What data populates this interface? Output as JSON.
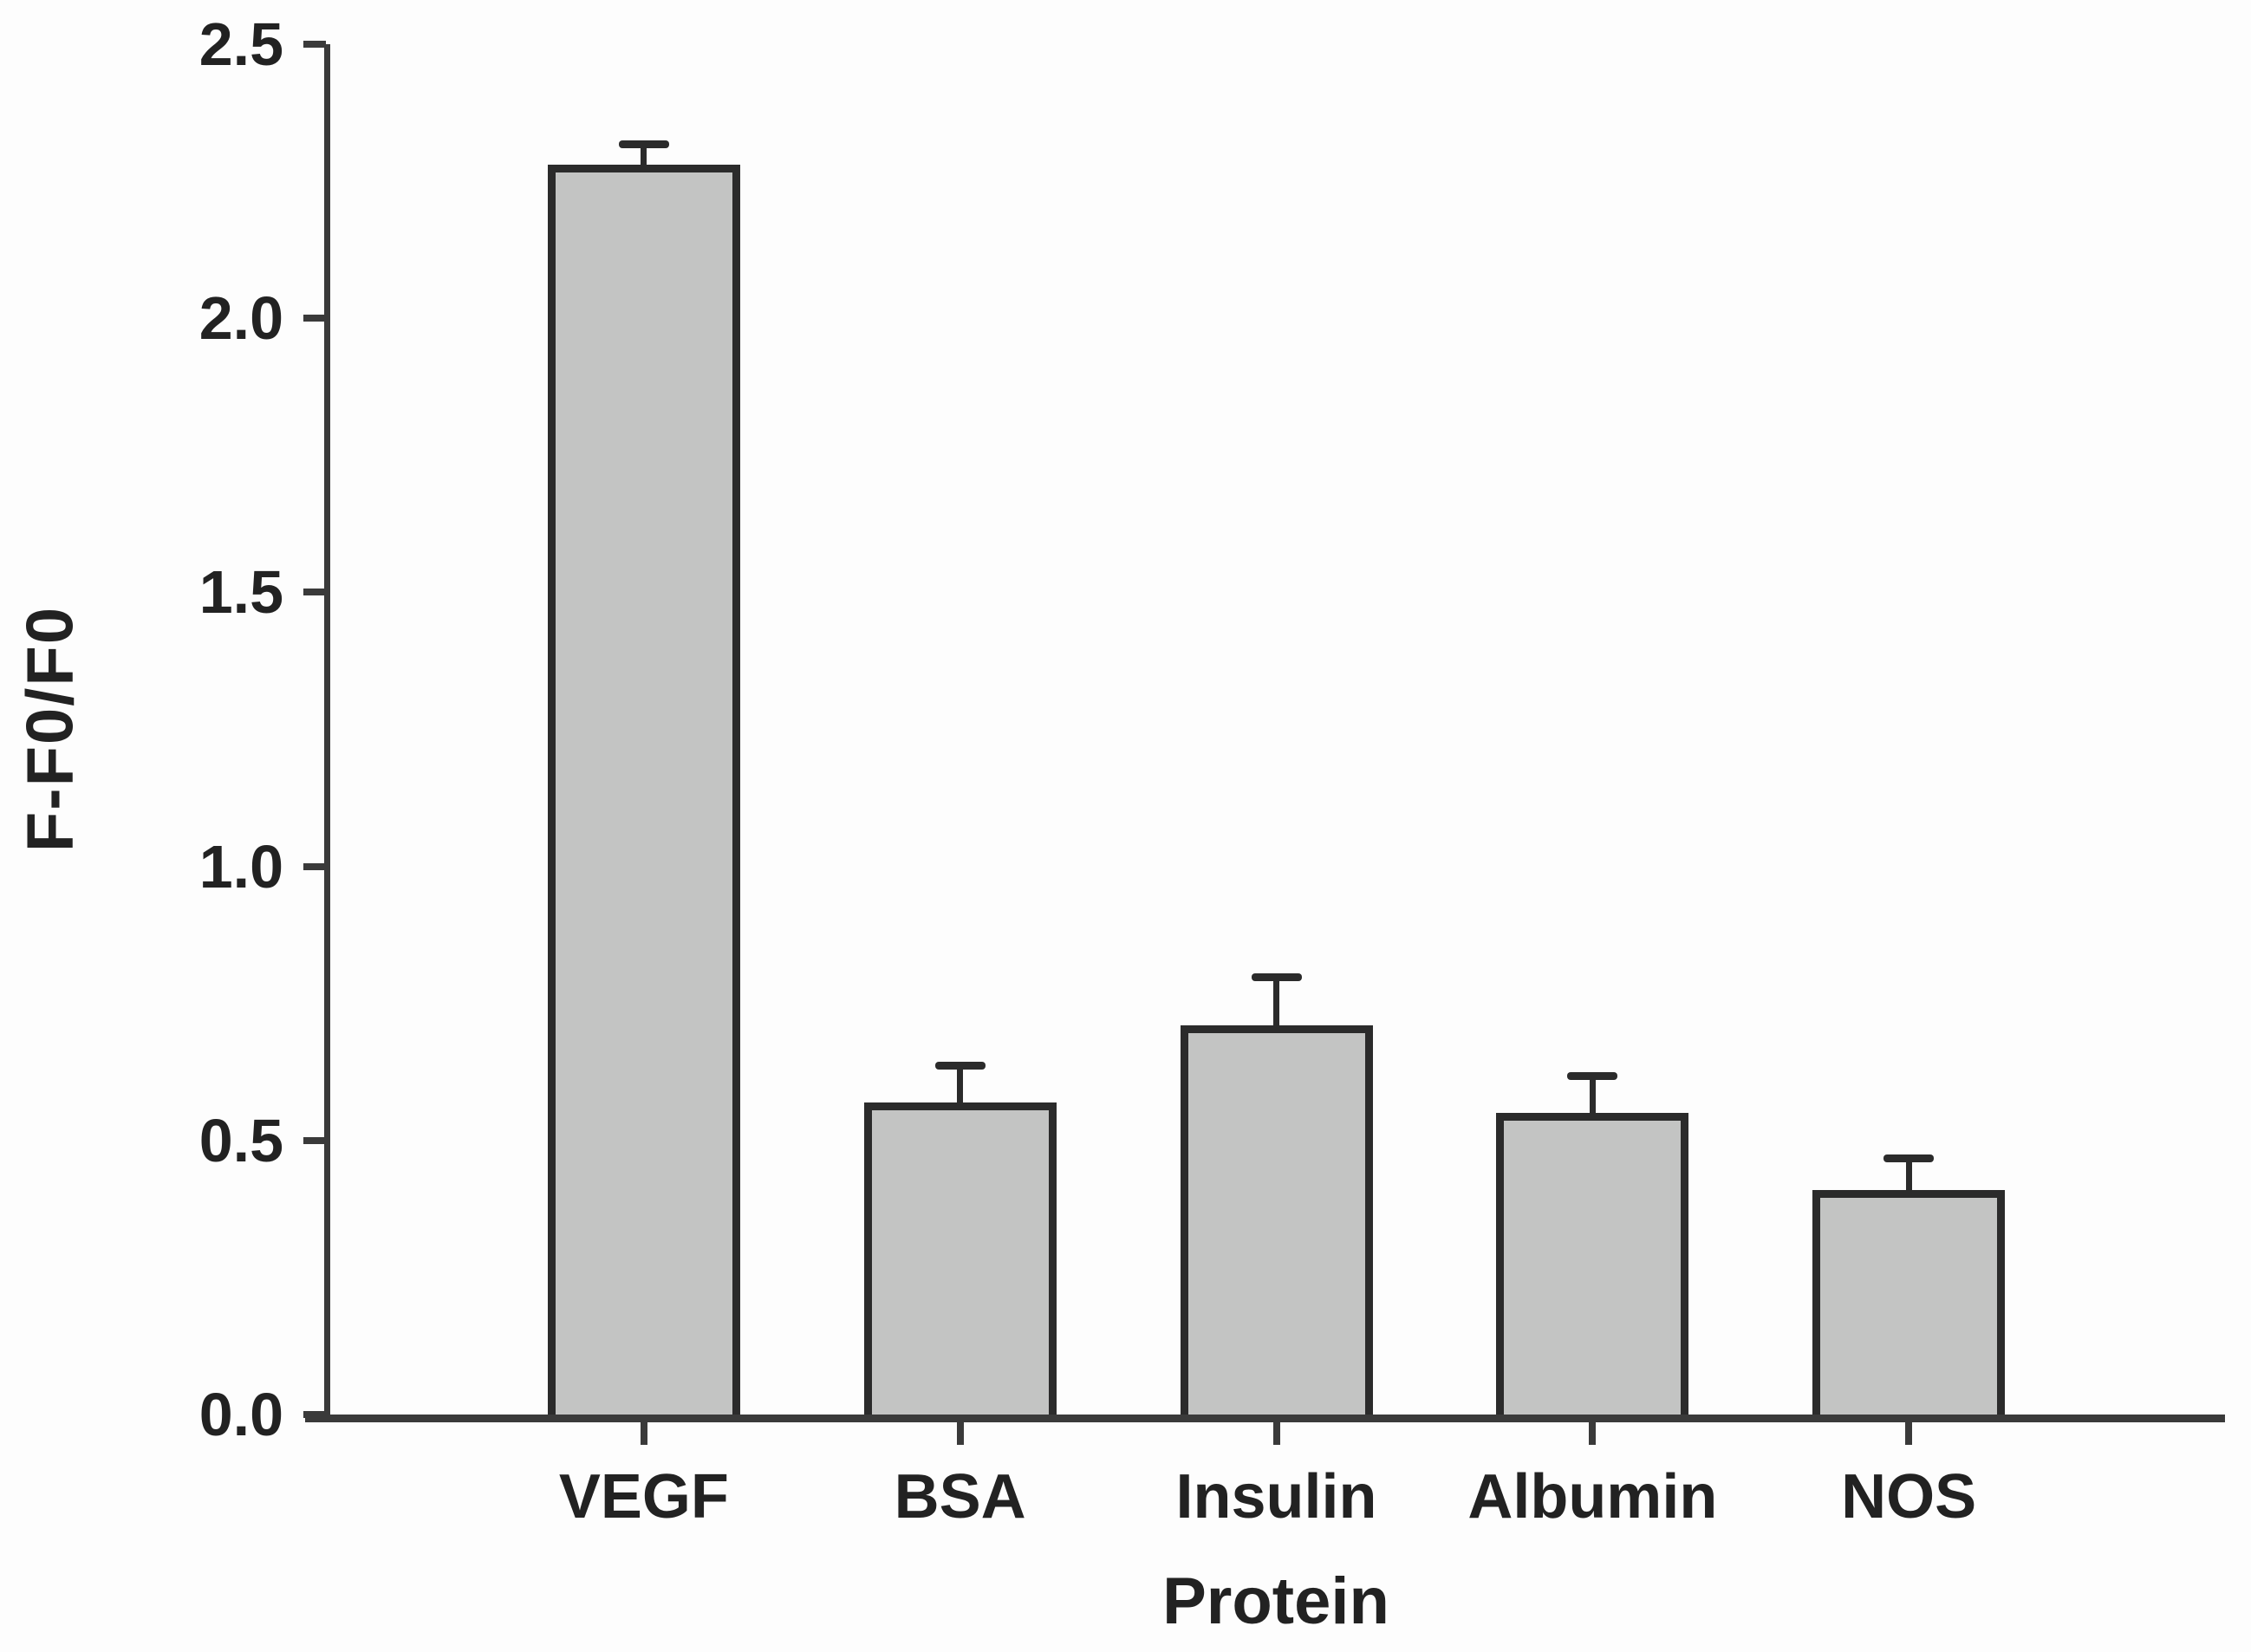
{
  "figure": {
    "title": ""
  },
  "chart_data": {
    "type": "bar",
    "categories": [
      "VEGF",
      "BSA",
      "Insulin",
      "Albumin",
      "NOS"
    ],
    "values": [
      2.28,
      0.57,
      0.71,
      0.55,
      0.41
    ],
    "errors_upper": [
      0.03,
      0.06,
      0.08,
      0.06,
      0.05
    ],
    "title": "",
    "xlabel": "Protein",
    "ylabel": "F-F0/F0",
    "ylim": [
      0,
      2.5
    ],
    "ytick_values": [
      0.0,
      0.5,
      1.0,
      1.5,
      2.0,
      2.5
    ],
    "ytick_labels": [
      "0.0",
      "0.5",
      "1.0",
      "1.5",
      "2.0",
      "2.5"
    ],
    "grid": false,
    "legend": "none",
    "error_bars": "upper-only",
    "colors": {
      "bar_fill": "#c3c4c3",
      "bar_border": "#2b2b2b",
      "axis": "#3a3a3a",
      "text": "#222222",
      "background": "#fdfdfd"
    }
  }
}
